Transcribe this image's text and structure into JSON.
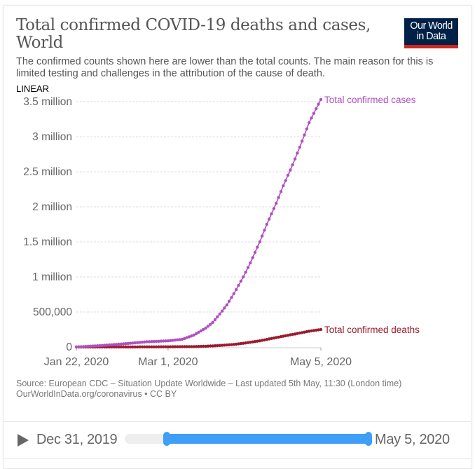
{
  "header": {
    "title": "Total confirmed COVID-19 deaths and cases, World",
    "subtitle": "The confirmed counts shown here are lower than the total counts. The main reason for this is limited testing and challenges in the attribution of the cause of death.",
    "logo_line1": "Our World",
    "logo_line2": "in Data",
    "scale_toggle": "LINEAR"
  },
  "colors": {
    "cases": "#b04fc0",
    "deaths": "#9a1b2f",
    "logo_bg": "#002147",
    "logo_bar": "#ce261e",
    "timeline_accent": "#3f9ef7"
  },
  "chart_data": {
    "type": "line",
    "title": "Total confirmed COVID-19 deaths and cases, World",
    "xlabel": "",
    "ylabel": "",
    "x_start": "2020-01-22",
    "x_end": "2020-05-05",
    "x_tick_labels": [
      "Jan 22, 2020",
      "Mar 1, 2020",
      "May 5, 2020"
    ],
    "x_tick_days": [
      0,
      39,
      104
    ],
    "y_ticks": [
      0,
      500000,
      1000000,
      1500000,
      2000000,
      2500000,
      3000000,
      3500000
    ],
    "y_tick_labels": [
      "0",
      "500,000",
      "1 million",
      "1.5 million",
      "2 million",
      "2.5 million",
      "3 million",
      "3.5 million"
    ],
    "ylim": [
      0,
      3500000
    ],
    "grid": true,
    "legend": "inline-right",
    "series": [
      {
        "name": "Total confirmed cases",
        "key": "cases",
        "points_day": [
          0,
          10,
          20,
          30,
          39,
          45,
          50,
          55,
          58,
          61,
          64,
          67,
          71,
          74,
          78,
          81,
          85,
          88,
          92,
          95,
          99,
          102,
          104
        ],
        "points_value": [
          580,
          20000,
          45000,
          75000,
          88000,
          110000,
          170000,
          270000,
          350000,
          470000,
          600000,
          760000,
          1000000,
          1200000,
          1500000,
          1750000,
          2050000,
          2300000,
          2600000,
          2850000,
          3200000,
          3400000,
          3530000
        ]
      },
      {
        "name": "Total confirmed deaths",
        "key": "deaths",
        "points_day": [
          0,
          20,
          39,
          50,
          55,
          61,
          67,
          71,
          78,
          85,
          92,
          99,
          104
        ],
        "points_value": [
          17,
          700,
          3000,
          6000,
          11000,
          22000,
          37000,
          53000,
          88000,
          135000,
          180000,
          225000,
          250000
        ]
      }
    ]
  },
  "footer": {
    "source": "Source: European CDC – Situation Update Worldwide – Last updated 5th May, 11:30 (London time)",
    "link": "OurWorldInData.org/coronavirus • CC BY"
  },
  "timeline": {
    "start_label": "Dec 31, 2019",
    "end_label": "May 5, 2020",
    "range_start_fraction": 0.17,
    "range_end_fraction": 1.0
  }
}
